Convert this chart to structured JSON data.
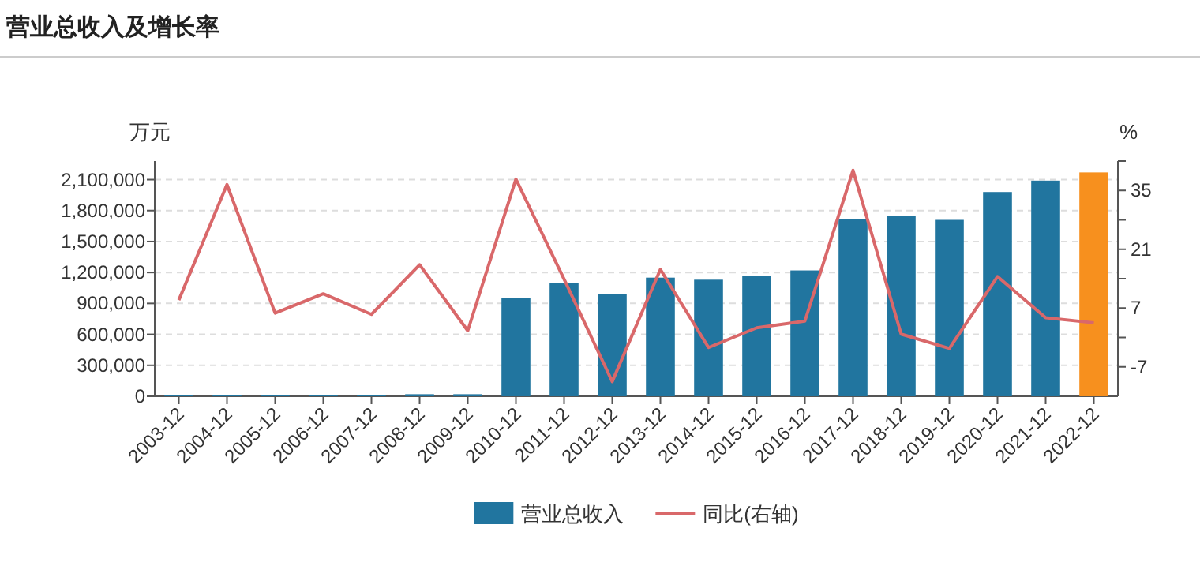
{
  "chart_data": {
    "type": "bar",
    "title": "营业总收入及增长率",
    "ylabel": "万元",
    "y2label": "%",
    "categories": [
      "2003-12",
      "2004-12",
      "2005-12",
      "2006-12",
      "2007-12",
      "2008-12",
      "2009-12",
      "2010-12",
      "2011-12",
      "2012-12",
      "2013-12",
      "2014-12",
      "2015-12",
      "2016-12",
      "2017-12",
      "2018-12",
      "2019-12",
      "2020-12",
      "2021-12",
      "2022-12"
    ],
    "series": [
      {
        "name": "营业总收入",
        "color": "#21759f",
        "colors": [
          "#21759f",
          "#21759f",
          "#21759f",
          "#21759f",
          "#21759f",
          "#21759f",
          "#21759f",
          "#21759f",
          "#21759f",
          "#21759f",
          "#21759f",
          "#21759f",
          "#21759f",
          "#21759f",
          "#21759f",
          "#21759f",
          "#21759f",
          "#21759f",
          "#21759f",
          "#f7901e"
        ],
        "values": [
          10000,
          10000,
          10000,
          10000,
          10000,
          20000,
          20000,
          950000,
          1100000,
          990000,
          1150000,
          1130000,
          1170000,
          1220000,
          1720000,
          1750000,
          1710000,
          1980000,
          2090000,
          2170000
        ]
      },
      {
        "name": "同比(右轴)",
        "type": "line",
        "axis": "y2",
        "color": "#d9686a",
        "values": [
          8.9,
          36.4,
          5.8,
          10.4,
          5.5,
          17.3,
          1.6,
          37.7,
          13.9,
          -10.5,
          16.2,
          -2.4,
          2.3,
          3.9,
          39.8,
          0.8,
          -2.6,
          14.5,
          4.7,
          3.5
        ]
      }
    ],
    "ylim": [
      0,
      2280000
    ],
    "yticks": [
      0,
      {
        "value": 300000,
        "label": "300,000"
      },
      {
        "value": 600000,
        "label": "600,000"
      },
      {
        "value": 900000,
        "label": "900,000"
      },
      {
        "value": 1200000,
        "label": "1,200,000"
      },
      {
        "value": 1500000,
        "label": "1,500,000"
      },
      {
        "value": 1800000,
        "label": "1,800,000"
      },
      {
        "value": 2100000,
        "label": "2,100,000"
      }
    ],
    "y2lim": [
      -14,
      42
    ],
    "y2ticks": [
      -7,
      {
        "value": 0,
        "label": null
      },
      7,
      {
        "value": 14,
        "label": null
      },
      21,
      {
        "value": 28,
        "label": null
      },
      35,
      {
        "value": 42,
        "label": null
      }
    ],
    "grid": "y",
    "legend": "bottom",
    "marker": "none",
    "line_style": "solid"
  }
}
